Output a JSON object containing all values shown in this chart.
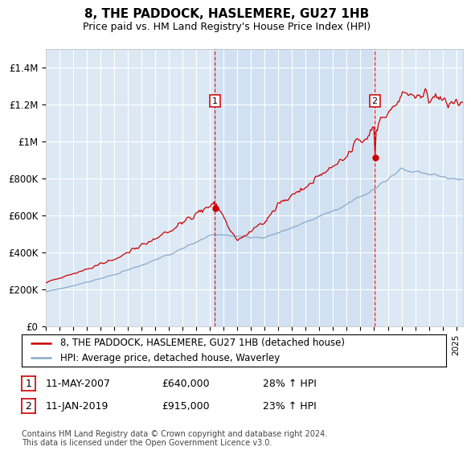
{
  "title": "8, THE PADDOCK, HASLEMERE, GU27 1HB",
  "subtitle": "Price paid vs. HM Land Registry's House Price Index (HPI)",
  "plot_bg_color": "#dce9f5",
  "price_color": "#cc0000",
  "hpi_color": "#88aacc",
  "shade_color": "#c8daf0",
  "ylim": [
    0,
    1500000
  ],
  "yticks": [
    0,
    200000,
    400000,
    600000,
    800000,
    1000000,
    1200000,
    1400000
  ],
  "ytick_labels": [
    "£0",
    "£200K",
    "£400K",
    "£600K",
    "£800K",
    "£1M",
    "£1.2M",
    "£1.4M"
  ],
  "sale1_x": 2007.36,
  "sale1_price": 640000,
  "sale2_x": 2019.04,
  "sale2_price": 915000,
  "legend_line1": "8, THE PADDOCK, HASLEMERE, GU27 1HB (detached house)",
  "legend_line2": "HPI: Average price, detached house, Waverley",
  "footer": "Contains HM Land Registry data © Crown copyright and database right 2024.\nThis data is licensed under the Open Government Licence v3.0.",
  "xmin": 1995,
  "xmax": 2025.5
}
